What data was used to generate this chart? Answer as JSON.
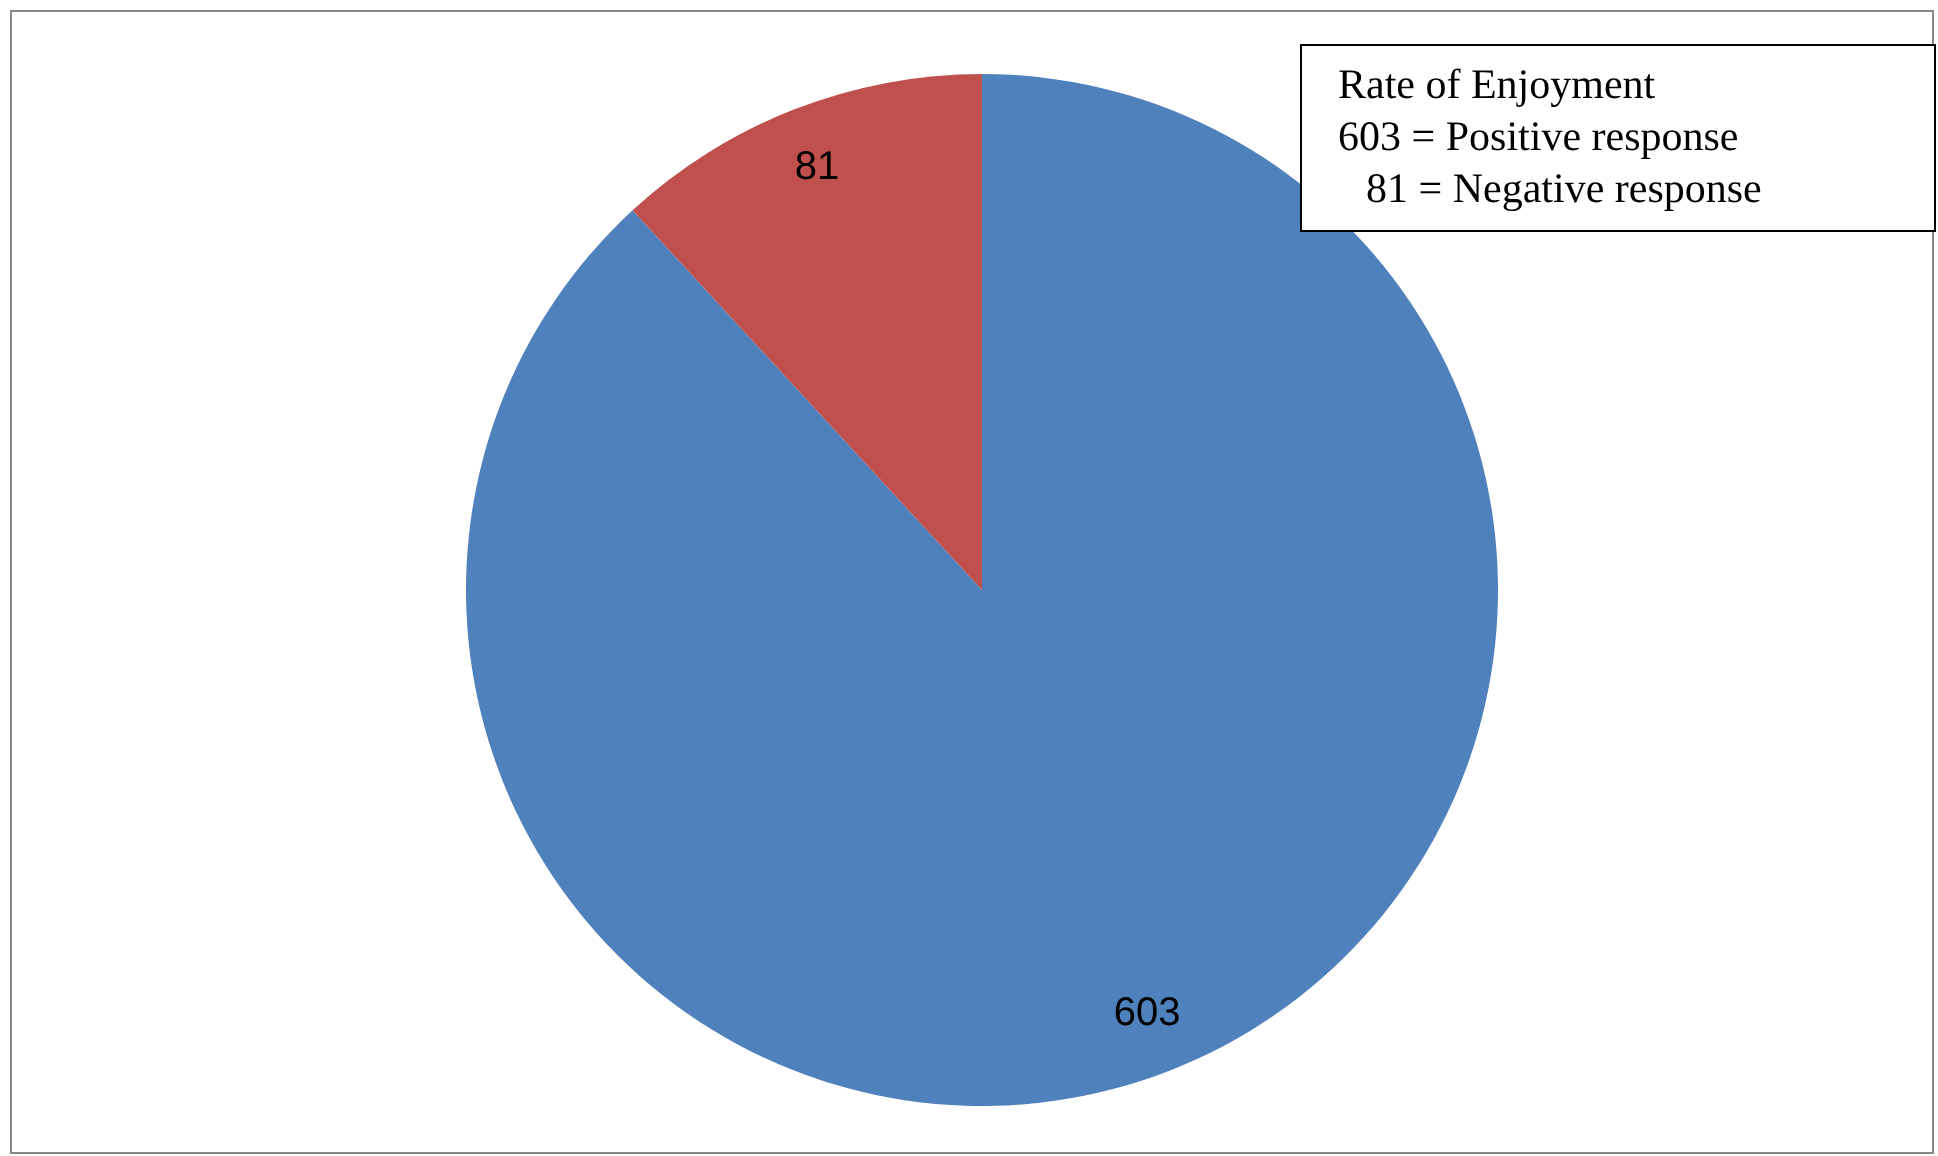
{
  "chart_data": {
    "type": "pie",
    "categories": [
      null,
      null
    ],
    "values": [
      603,
      81
    ],
    "colors": [
      "#4f81bd",
      "#c0504d"
    ],
    "data_labels": true,
    "annotations": [
      "Rate of Enjoyment",
      "603 = Positive response",
      "81 = Negative response"
    ]
  }
}
